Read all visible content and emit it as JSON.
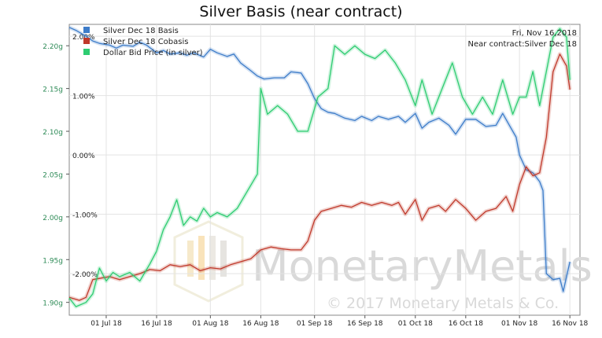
{
  "chart_data": {
    "type": "line",
    "title": "Silver Basis (near contract)",
    "date_label": "Fri, Nov 16,2018",
    "contract_label": "Near contract:Silver Dec 18",
    "watermark_text": "MonetaryMetals",
    "copyright": "© 2017 Monetary Metals & Co.",
    "grid": true,
    "legend_position": "top-left",
    "x_tick_labels": [
      "01 Jul 18",
      "16 Jul 18",
      "01 Aug 18",
      "16 Aug 18",
      "01 Sep 18",
      "16 Sep 18",
      "01 Oct 18",
      "16 Oct 18",
      "01 Nov 18",
      "16 Nov 18"
    ],
    "x_range": [
      "2018-06-20",
      "2018-11-19"
    ],
    "left_axis": {
      "ticks": [
        "1.90g",
        "1.95g",
        "2.00g",
        "2.05g",
        "2.10g",
        "2.15g",
        "2.20g"
      ],
      "ylim": [
        1.885,
        2.225
      ],
      "unit": "g"
    },
    "right_axis": {
      "ticks": [
        "-2.00%",
        "-1.00%",
        "0.00%",
        "1.00%",
        "2.00%"
      ],
      "ylim": [
        -2.7,
        2.2
      ],
      "unit": "%"
    },
    "series": [
      {
        "name": "Silver Dec 18 Basis",
        "color": "#3d7cc9",
        "axis": "right",
        "points": [
          [
            "2018-06-20",
            2.15
          ],
          [
            "2018-06-22",
            2.1
          ],
          [
            "2018-06-25",
            2.0
          ],
          [
            "2018-06-27",
            1.92
          ],
          [
            "2018-06-29",
            1.88
          ],
          [
            "2018-07-02",
            1.85
          ],
          [
            "2018-07-04",
            1.8
          ],
          [
            "2018-07-06",
            1.85
          ],
          [
            "2018-07-09",
            1.83
          ],
          [
            "2018-07-11",
            1.9
          ],
          [
            "2018-07-13",
            1.85
          ],
          [
            "2018-07-16",
            1.72
          ],
          [
            "2018-07-18",
            1.76
          ],
          [
            "2018-07-20",
            1.7
          ],
          [
            "2018-07-23",
            1.72
          ],
          [
            "2018-07-25",
            1.68
          ],
          [
            "2018-07-27",
            1.72
          ],
          [
            "2018-07-30",
            1.65
          ],
          [
            "2018-08-01",
            1.78
          ],
          [
            "2018-08-03",
            1.72
          ],
          [
            "2018-08-06",
            1.66
          ],
          [
            "2018-08-08",
            1.7
          ],
          [
            "2018-08-10",
            1.55
          ],
          [
            "2018-08-13",
            1.42
          ],
          [
            "2018-08-15",
            1.33
          ],
          [
            "2018-08-17",
            1.28
          ],
          [
            "2018-08-20",
            1.3
          ],
          [
            "2018-08-23",
            1.3
          ],
          [
            "2018-08-25",
            1.4
          ],
          [
            "2018-08-28",
            1.38
          ],
          [
            "2018-08-30",
            1.2
          ],
          [
            "2018-09-01",
            0.95
          ],
          [
            "2018-09-03",
            0.78
          ],
          [
            "2018-09-05",
            0.72
          ],
          [
            "2018-09-07",
            0.7
          ],
          [
            "2018-09-10",
            0.62
          ],
          [
            "2018-09-13",
            0.58
          ],
          [
            "2018-09-15",
            0.65
          ],
          [
            "2018-09-18",
            0.58
          ],
          [
            "2018-09-20",
            0.65
          ],
          [
            "2018-09-23",
            0.6
          ],
          [
            "2018-09-26",
            0.65
          ],
          [
            "2018-09-28",
            0.55
          ],
          [
            "2018-10-01",
            0.7
          ],
          [
            "2018-10-03",
            0.45
          ],
          [
            "2018-10-05",
            0.55
          ],
          [
            "2018-10-08",
            0.62
          ],
          [
            "2018-10-11",
            0.5
          ],
          [
            "2018-10-13",
            0.35
          ],
          [
            "2018-10-16",
            0.6
          ],
          [
            "2018-10-19",
            0.6
          ],
          [
            "2018-10-22",
            0.48
          ],
          [
            "2018-10-25",
            0.5
          ],
          [
            "2018-10-27",
            0.7
          ],
          [
            "2018-10-29",
            0.5
          ],
          [
            "2018-10-31",
            0.3
          ],
          [
            "2018-11-01",
            0.0
          ],
          [
            "2018-11-03",
            -0.25
          ],
          [
            "2018-11-05",
            -0.3
          ],
          [
            "2018-11-07",
            -0.45
          ],
          [
            "2018-11-08",
            -0.6
          ],
          [
            "2018-11-09",
            -2.0
          ],
          [
            "2018-11-11",
            -2.1
          ],
          [
            "2018-11-13",
            -2.08
          ],
          [
            "2018-11-14",
            -2.3
          ],
          [
            "2018-11-16",
            -1.8
          ]
        ]
      },
      {
        "name": "Silver Dec 18 Cobasis",
        "color": "#c0392b",
        "axis": "right",
        "points": [
          [
            "2018-06-20",
            -2.4
          ],
          [
            "2018-06-23",
            -2.45
          ],
          [
            "2018-06-25",
            -2.4
          ],
          [
            "2018-06-27",
            -2.1
          ],
          [
            "2018-06-29",
            -2.08
          ],
          [
            "2018-07-02",
            -2.05
          ],
          [
            "2018-07-05",
            -2.1
          ],
          [
            "2018-07-08",
            -2.05
          ],
          [
            "2018-07-11",
            -2.0
          ],
          [
            "2018-07-14",
            -1.93
          ],
          [
            "2018-07-17",
            -1.95
          ],
          [
            "2018-07-20",
            -1.85
          ],
          [
            "2018-07-23",
            -1.88
          ],
          [
            "2018-07-26",
            -1.85
          ],
          [
            "2018-07-29",
            -1.95
          ],
          [
            "2018-08-01",
            -1.9
          ],
          [
            "2018-08-04",
            -1.92
          ],
          [
            "2018-08-07",
            -1.85
          ],
          [
            "2018-08-10",
            -1.8
          ],
          [
            "2018-08-13",
            -1.75
          ],
          [
            "2018-08-16",
            -1.6
          ],
          [
            "2018-08-19",
            -1.55
          ],
          [
            "2018-08-22",
            -1.58
          ],
          [
            "2018-08-25",
            -1.6
          ],
          [
            "2018-08-28",
            -1.6
          ],
          [
            "2018-08-30",
            -1.45
          ],
          [
            "2018-09-01",
            -1.1
          ],
          [
            "2018-09-03",
            -0.95
          ],
          [
            "2018-09-06",
            -0.9
          ],
          [
            "2018-09-09",
            -0.85
          ],
          [
            "2018-09-12",
            -0.88
          ],
          [
            "2018-09-15",
            -0.8
          ],
          [
            "2018-09-18",
            -0.85
          ],
          [
            "2018-09-21",
            -0.8
          ],
          [
            "2018-09-24",
            -0.85
          ],
          [
            "2018-09-26",
            -0.8
          ],
          [
            "2018-09-28",
            -1.0
          ],
          [
            "2018-10-01",
            -0.75
          ],
          [
            "2018-10-03",
            -1.1
          ],
          [
            "2018-10-05",
            -0.9
          ],
          [
            "2018-10-08",
            -0.85
          ],
          [
            "2018-10-10",
            -0.95
          ],
          [
            "2018-10-13",
            -0.75
          ],
          [
            "2018-10-16",
            -0.9
          ],
          [
            "2018-10-19",
            -1.1
          ],
          [
            "2018-10-22",
            -0.95
          ],
          [
            "2018-10-25",
            -0.9
          ],
          [
            "2018-10-28",
            -0.7
          ],
          [
            "2018-10-30",
            -0.95
          ],
          [
            "2018-11-01",
            -0.5
          ],
          [
            "2018-11-03",
            -0.2
          ],
          [
            "2018-11-05",
            -0.35
          ],
          [
            "2018-11-07",
            -0.3
          ],
          [
            "2018-11-09",
            0.3
          ],
          [
            "2018-11-11",
            1.4
          ],
          [
            "2018-11-13",
            1.7
          ],
          [
            "2018-11-15",
            1.5
          ],
          [
            "2018-11-16",
            1.1
          ]
        ]
      },
      {
        "name": "Dollar Bid Price (in silver)",
        "color": "#2ecc71",
        "axis": "left",
        "points": [
          [
            "2018-06-20",
            1.905
          ],
          [
            "2018-06-22",
            1.895
          ],
          [
            "2018-06-25",
            1.9
          ],
          [
            "2018-06-27",
            1.91
          ],
          [
            "2018-06-29",
            1.94
          ],
          [
            "2018-07-01",
            1.925
          ],
          [
            "2018-07-03",
            1.935
          ],
          [
            "2018-07-05",
            1.93
          ],
          [
            "2018-07-08",
            1.935
          ],
          [
            "2018-07-11",
            1.925
          ],
          [
            "2018-07-14",
            1.945
          ],
          [
            "2018-07-16",
            1.96
          ],
          [
            "2018-07-18",
            1.985
          ],
          [
            "2018-07-20",
            2.0
          ],
          [
            "2018-07-22",
            2.02
          ],
          [
            "2018-07-24",
            1.99
          ],
          [
            "2018-07-26",
            2.0
          ],
          [
            "2018-07-28",
            1.995
          ],
          [
            "2018-07-30",
            2.01
          ],
          [
            "2018-08-01",
            2.0
          ],
          [
            "2018-08-03",
            2.005
          ],
          [
            "2018-08-06",
            2.0
          ],
          [
            "2018-08-09",
            2.01
          ],
          [
            "2018-08-12",
            2.03
          ],
          [
            "2018-08-15",
            2.05
          ],
          [
            "2018-08-16",
            2.15
          ],
          [
            "2018-08-18",
            2.12
          ],
          [
            "2018-08-21",
            2.13
          ],
          [
            "2018-08-24",
            2.12
          ],
          [
            "2018-08-27",
            2.1
          ],
          [
            "2018-08-30",
            2.1
          ],
          [
            "2018-09-02",
            2.14
          ],
          [
            "2018-09-05",
            2.15
          ],
          [
            "2018-09-07",
            2.2
          ],
          [
            "2018-09-10",
            2.19
          ],
          [
            "2018-09-13",
            2.2
          ],
          [
            "2018-09-16",
            2.19
          ],
          [
            "2018-09-19",
            2.185
          ],
          [
            "2018-09-22",
            2.195
          ],
          [
            "2018-09-25",
            2.18
          ],
          [
            "2018-09-28",
            2.16
          ],
          [
            "2018-10-01",
            2.13
          ],
          [
            "2018-10-03",
            2.16
          ],
          [
            "2018-10-06",
            2.12
          ],
          [
            "2018-10-09",
            2.15
          ],
          [
            "2018-10-12",
            2.18
          ],
          [
            "2018-10-15",
            2.14
          ],
          [
            "2018-10-18",
            2.12
          ],
          [
            "2018-10-21",
            2.14
          ],
          [
            "2018-10-24",
            2.12
          ],
          [
            "2018-10-27",
            2.16
          ],
          [
            "2018-10-30",
            2.12
          ],
          [
            "2018-11-01",
            2.14
          ],
          [
            "2018-11-03",
            2.14
          ],
          [
            "2018-11-05",
            2.17
          ],
          [
            "2018-11-07",
            2.13
          ],
          [
            "2018-11-09",
            2.17
          ],
          [
            "2018-11-11",
            2.21
          ],
          [
            "2018-11-13",
            2.22
          ],
          [
            "2018-11-15",
            2.21
          ],
          [
            "2018-11-16",
            2.16
          ]
        ]
      }
    ]
  }
}
